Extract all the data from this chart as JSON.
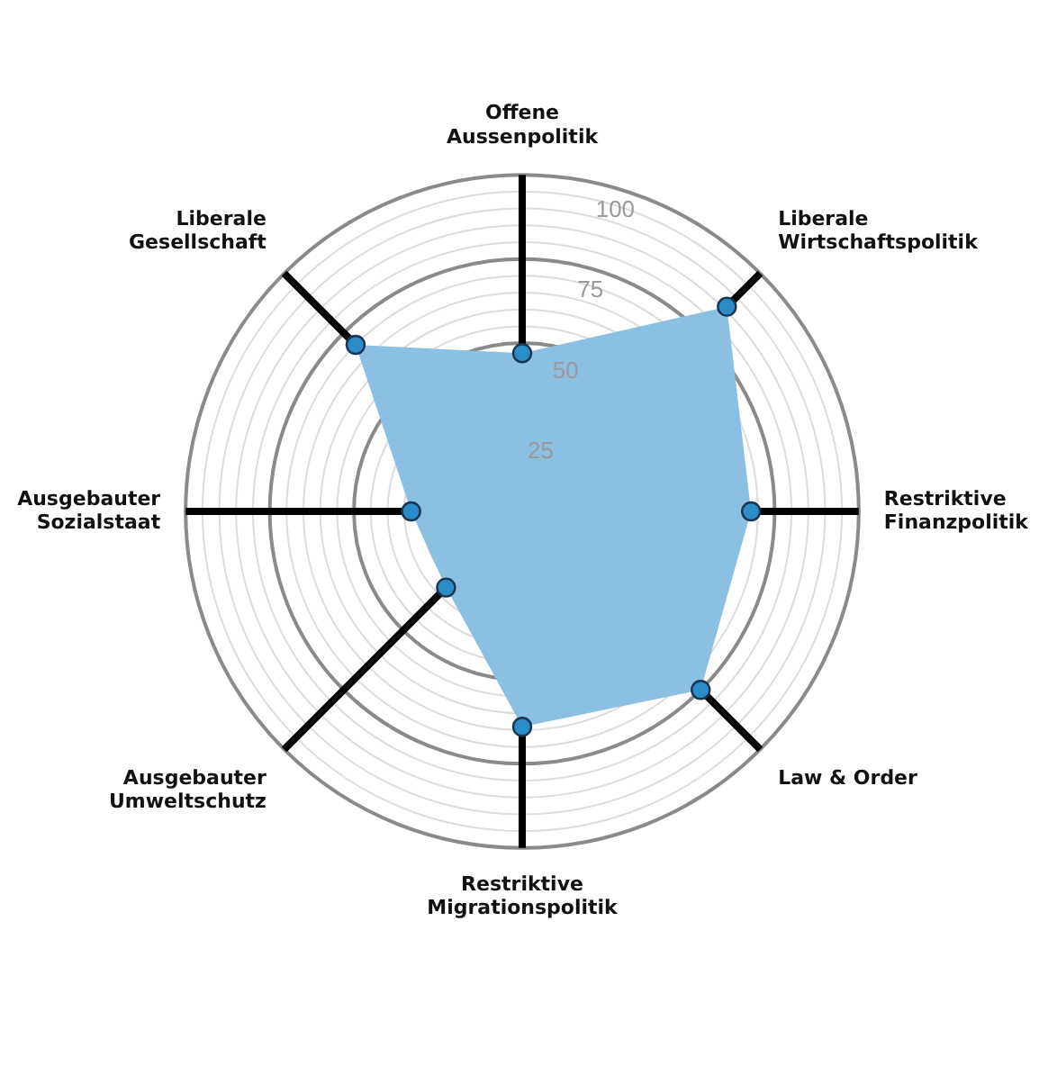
{
  "chart_data": {
    "type": "radar",
    "categories": [
      "Offene\nAussenpolitik",
      "Liberale\nWirtschaftspolitik",
      "Restriktive\nFinanzpolitik",
      "Law & Order",
      "Restriktive\nMigrationspolitik",
      "Ausgebauter\nUmweltschutz",
      "Ausgebauter\nSozialstaat",
      "Liberale\nGesellschaft"
    ],
    "series": [
      {
        "color": "#8cc0e3",
        "values": [
          47,
          86,
          68,
          75,
          64,
          32,
          33,
          70
        ]
      }
    ],
    "ylim": [
      0,
      100
    ],
    "yticks": [
      25,
      50,
      75,
      100
    ],
    "grid": true,
    "marker": "circle",
    "legend": false
  }
}
